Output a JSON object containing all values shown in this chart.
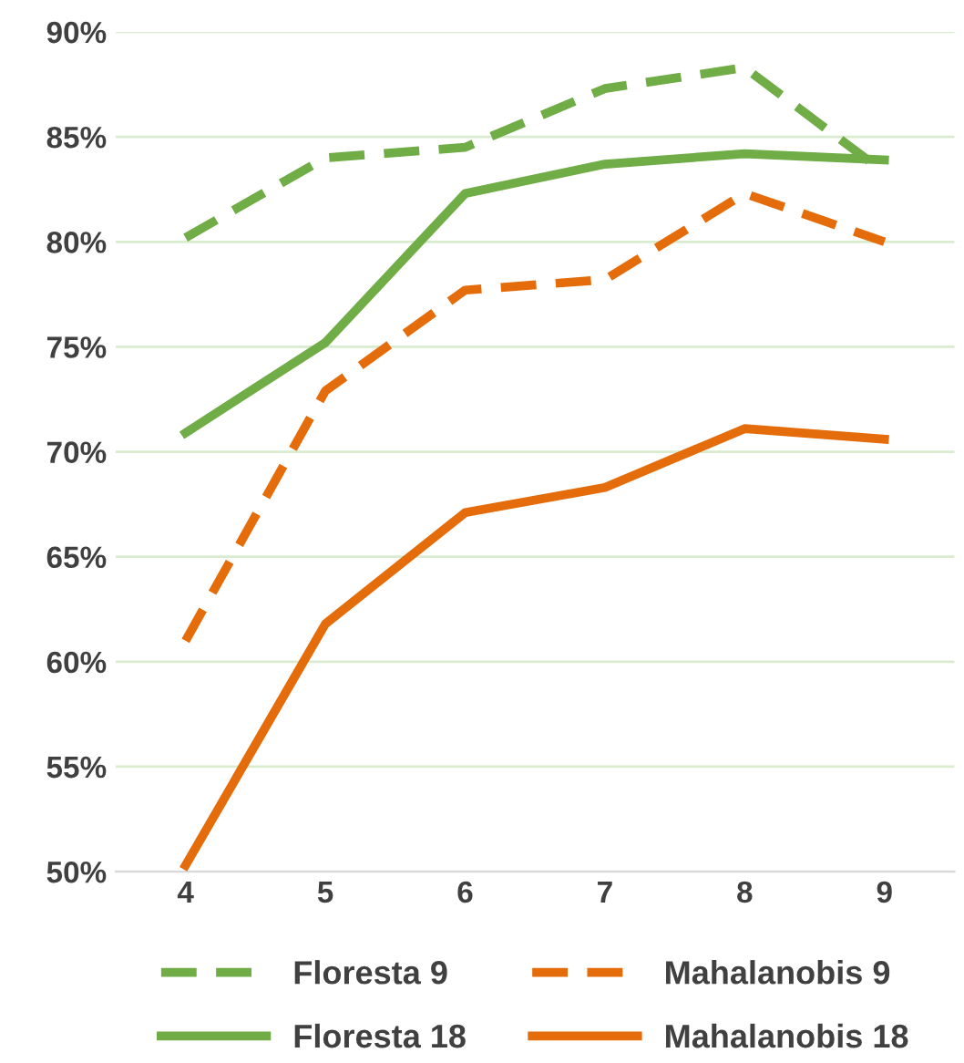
{
  "chart_data": {
    "type": "line",
    "categories": [
      "4",
      "5",
      "6",
      "7",
      "8",
      "9"
    ],
    "ylim": [
      50,
      90
    ],
    "yticks": [
      {
        "value": 50,
        "label": "50%"
      },
      {
        "value": 55,
        "label": "55%"
      },
      {
        "value": 60,
        "label": "60%"
      },
      {
        "value": 65,
        "label": "65%"
      },
      {
        "value": 70,
        "label": "70%"
      },
      {
        "value": 75,
        "label": "75%"
      },
      {
        "value": 80,
        "label": "80%"
      },
      {
        "value": 85,
        "label": "85%"
      },
      {
        "value": 90,
        "label": "90%"
      }
    ],
    "grid": "y",
    "legend": "bottom",
    "marker": "none",
    "series": [
      {
        "name": "Floresta 9",
        "color": "#70ad47",
        "line_style": "dashed",
        "values": [
          80.2,
          84.0,
          84.5,
          87.3,
          88.3,
          83.3
        ]
      },
      {
        "name": "Floresta 18",
        "color": "#70ad47",
        "line_style": "solid",
        "values": [
          70.9,
          75.2,
          82.3,
          83.7,
          84.2,
          83.9
        ]
      },
      {
        "name": "Mahalanobis 9",
        "color": "#e46c0a",
        "line_style": "dashed",
        "values": [
          61.0,
          72.9,
          77.7,
          78.2,
          82.3,
          80.0
        ]
      },
      {
        "name": "Mahalanobis 18",
        "color": "#e46c0a",
        "line_style": "solid",
        "values": [
          50.3,
          61.8,
          67.1,
          68.3,
          71.1,
          70.6
        ]
      }
    ]
  }
}
